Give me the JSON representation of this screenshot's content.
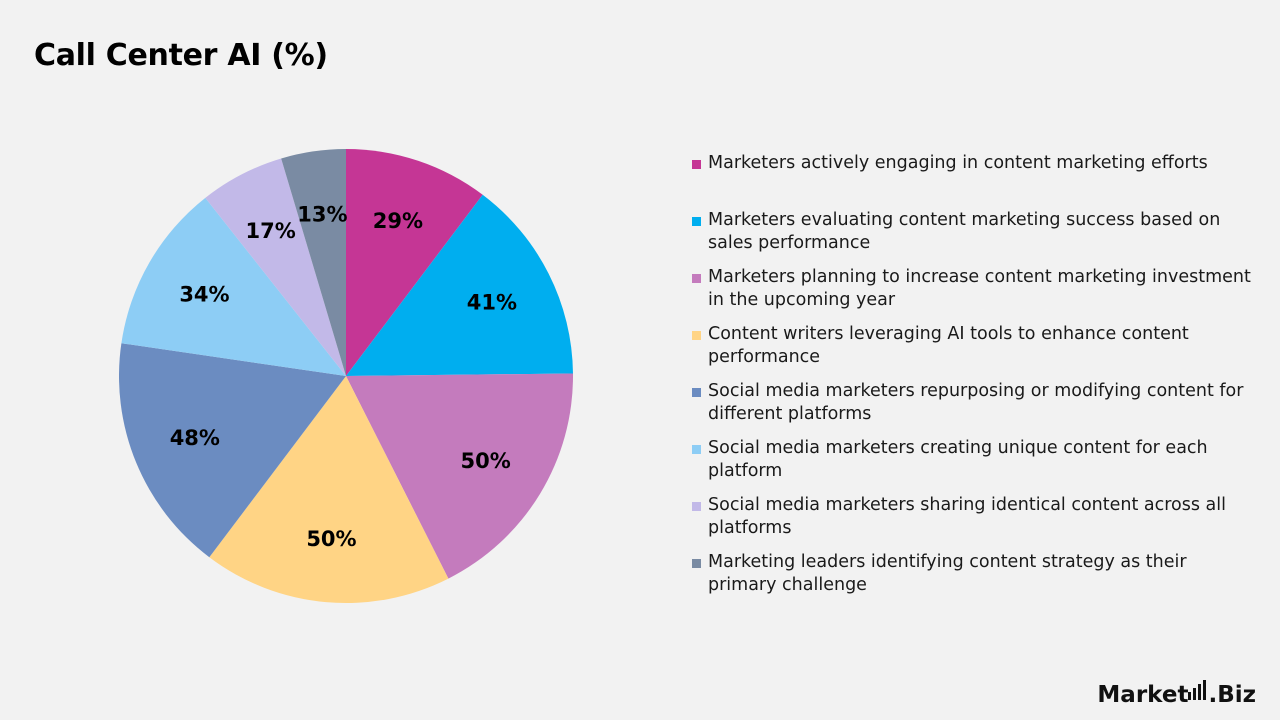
{
  "chart_data": {
    "type": "pie",
    "title": "Call Center AI (%)",
    "categories": [
      "Marketers actively engaging in content marketing efforts",
      "Marketers evaluating content marketing success based on sales performance",
      "Marketers planning to increase content marketing investment in the upcoming year",
      "Content writers leveraging AI tools to enhance content performance",
      "Social media marketers repurposing or modifying content for different platforms",
      "Social media marketers creating unique content for each platform",
      "Social media marketers sharing identical content across all platforms",
      "Marketing leaders identifying content strategy as their primary challenge"
    ],
    "values": [
      29,
      41,
      50,
      50,
      48,
      34,
      17,
      13
    ],
    "labels": [
      "29%",
      "41%",
      "50%",
      "50%",
      "48%",
      "34%",
      "17%",
      "13%"
    ],
    "colors": [
      "#c53695",
      "#00aeef",
      "#c47bbd",
      "#ffd485",
      "#6b8cc1",
      "#8dcdf5",
      "#c2b9e8",
      "#7a8ba3"
    ],
    "legend_position": "right",
    "start_angle": "12 o'clock",
    "direction": "clockwise"
  },
  "brand": {
    "name_main": "Market",
    "name_suffix": ".Biz"
  }
}
